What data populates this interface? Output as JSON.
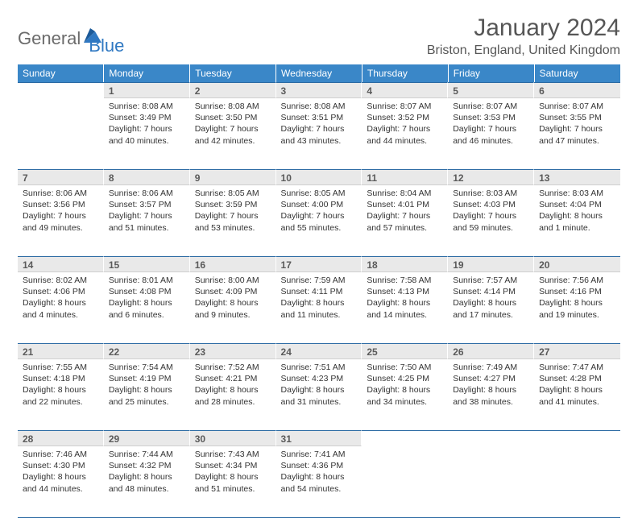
{
  "logo": {
    "general": "General",
    "blue": "Blue"
  },
  "title": {
    "month": "January 2024",
    "location": "Briston, England, United Kingdom"
  },
  "colors": {
    "header_bg": "#3a87c8",
    "header_fg": "#ffffff",
    "daynum_bg": "#e9e9e9",
    "rule": "#2b6aa3",
    "logo_blue": "#2f78c2",
    "logo_gray": "#6b6b6b"
  },
  "weekdays": [
    "Sunday",
    "Monday",
    "Tuesday",
    "Wednesday",
    "Thursday",
    "Friday",
    "Saturday"
  ],
  "weeks": [
    [
      null,
      {
        "n": "1",
        "sr": "8:08 AM",
        "ss": "3:49 PM",
        "dl": "7 hours and 40 minutes."
      },
      {
        "n": "2",
        "sr": "8:08 AM",
        "ss": "3:50 PM",
        "dl": "7 hours and 42 minutes."
      },
      {
        "n": "3",
        "sr": "8:08 AM",
        "ss": "3:51 PM",
        "dl": "7 hours and 43 minutes."
      },
      {
        "n": "4",
        "sr": "8:07 AM",
        "ss": "3:52 PM",
        "dl": "7 hours and 44 minutes."
      },
      {
        "n": "5",
        "sr": "8:07 AM",
        "ss": "3:53 PM",
        "dl": "7 hours and 46 minutes."
      },
      {
        "n": "6",
        "sr": "8:07 AM",
        "ss": "3:55 PM",
        "dl": "7 hours and 47 minutes."
      }
    ],
    [
      {
        "n": "7",
        "sr": "8:06 AM",
        "ss": "3:56 PM",
        "dl": "7 hours and 49 minutes."
      },
      {
        "n": "8",
        "sr": "8:06 AM",
        "ss": "3:57 PM",
        "dl": "7 hours and 51 minutes."
      },
      {
        "n": "9",
        "sr": "8:05 AM",
        "ss": "3:59 PM",
        "dl": "7 hours and 53 minutes."
      },
      {
        "n": "10",
        "sr": "8:05 AM",
        "ss": "4:00 PM",
        "dl": "7 hours and 55 minutes."
      },
      {
        "n": "11",
        "sr": "8:04 AM",
        "ss": "4:01 PM",
        "dl": "7 hours and 57 minutes."
      },
      {
        "n": "12",
        "sr": "8:03 AM",
        "ss": "4:03 PM",
        "dl": "7 hours and 59 minutes."
      },
      {
        "n": "13",
        "sr": "8:03 AM",
        "ss": "4:04 PM",
        "dl": "8 hours and 1 minute."
      }
    ],
    [
      {
        "n": "14",
        "sr": "8:02 AM",
        "ss": "4:06 PM",
        "dl": "8 hours and 4 minutes."
      },
      {
        "n": "15",
        "sr": "8:01 AM",
        "ss": "4:08 PM",
        "dl": "8 hours and 6 minutes."
      },
      {
        "n": "16",
        "sr": "8:00 AM",
        "ss": "4:09 PM",
        "dl": "8 hours and 9 minutes."
      },
      {
        "n": "17",
        "sr": "7:59 AM",
        "ss": "4:11 PM",
        "dl": "8 hours and 11 minutes."
      },
      {
        "n": "18",
        "sr": "7:58 AM",
        "ss": "4:13 PM",
        "dl": "8 hours and 14 minutes."
      },
      {
        "n": "19",
        "sr": "7:57 AM",
        "ss": "4:14 PM",
        "dl": "8 hours and 17 minutes."
      },
      {
        "n": "20",
        "sr": "7:56 AM",
        "ss": "4:16 PM",
        "dl": "8 hours and 19 minutes."
      }
    ],
    [
      {
        "n": "21",
        "sr": "7:55 AM",
        "ss": "4:18 PM",
        "dl": "8 hours and 22 minutes."
      },
      {
        "n": "22",
        "sr": "7:54 AM",
        "ss": "4:19 PM",
        "dl": "8 hours and 25 minutes."
      },
      {
        "n": "23",
        "sr": "7:52 AM",
        "ss": "4:21 PM",
        "dl": "8 hours and 28 minutes."
      },
      {
        "n": "24",
        "sr": "7:51 AM",
        "ss": "4:23 PM",
        "dl": "8 hours and 31 minutes."
      },
      {
        "n": "25",
        "sr": "7:50 AM",
        "ss": "4:25 PM",
        "dl": "8 hours and 34 minutes."
      },
      {
        "n": "26",
        "sr": "7:49 AM",
        "ss": "4:27 PM",
        "dl": "8 hours and 38 minutes."
      },
      {
        "n": "27",
        "sr": "7:47 AM",
        "ss": "4:28 PM",
        "dl": "8 hours and 41 minutes."
      }
    ],
    [
      {
        "n": "28",
        "sr": "7:46 AM",
        "ss": "4:30 PM",
        "dl": "8 hours and 44 minutes."
      },
      {
        "n": "29",
        "sr": "7:44 AM",
        "ss": "4:32 PM",
        "dl": "8 hours and 48 minutes."
      },
      {
        "n": "30",
        "sr": "7:43 AM",
        "ss": "4:34 PM",
        "dl": "8 hours and 51 minutes."
      },
      {
        "n": "31",
        "sr": "7:41 AM",
        "ss": "4:36 PM",
        "dl": "8 hours and 54 minutes."
      },
      null,
      null,
      null
    ]
  ],
  "labels": {
    "sunrise": "Sunrise:",
    "sunset": "Sunset:",
    "daylight": "Daylight:"
  }
}
